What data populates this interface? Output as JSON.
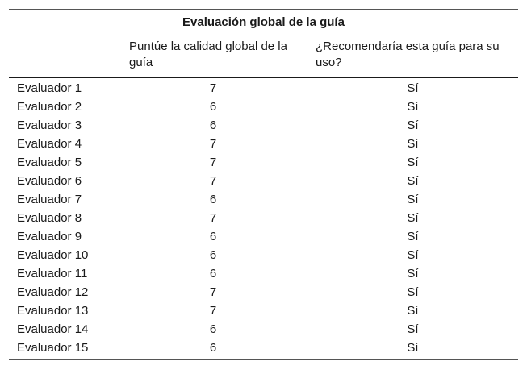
{
  "table": {
    "title": "Evaluación global de la guía",
    "headers": {
      "label": "",
      "score": "Puntúe la calidad global de la guía",
      "recommend": "¿Recomendaría esta guía para su uso?"
    },
    "rows": [
      {
        "evaluator": "Evaluador 1",
        "score": "7",
        "recommend": "Sí"
      },
      {
        "evaluator": "Evaluador 2",
        "score": "6",
        "recommend": "Sí"
      },
      {
        "evaluator": "Evaluador 3",
        "score": "6",
        "recommend": "Sí"
      },
      {
        "evaluator": "Evaluador 4",
        "score": "7",
        "recommend": "Sí"
      },
      {
        "evaluator": "Evaluador 5",
        "score": "7",
        "recommend": "Sí"
      },
      {
        "evaluator": "Evaluador 6",
        "score": "7",
        "recommend": "Sí"
      },
      {
        "evaluator": "Evaluador 7",
        "score": "6",
        "recommend": "Sí"
      },
      {
        "evaluator": "Evaluador 8",
        "score": "7",
        "recommend": "Sí"
      },
      {
        "evaluator": "Evaluador 9",
        "score": "6",
        "recommend": "Sí"
      },
      {
        "evaluator": "Evaluador 10",
        "score": "6",
        "recommend": "Sí"
      },
      {
        "evaluator": "Evaluador 11",
        "score": "6",
        "recommend": "Sí"
      },
      {
        "evaluator": "Evaluador 12",
        "score": "7",
        "recommend": "Sí"
      },
      {
        "evaluator": "Evaluador 13",
        "score": "7",
        "recommend": "Sí"
      },
      {
        "evaluator": "Evaluador 14",
        "score": "6",
        "recommend": "Sí"
      },
      {
        "evaluator": "Evaluador 15",
        "score": "6",
        "recommend": "Sí"
      }
    ]
  }
}
